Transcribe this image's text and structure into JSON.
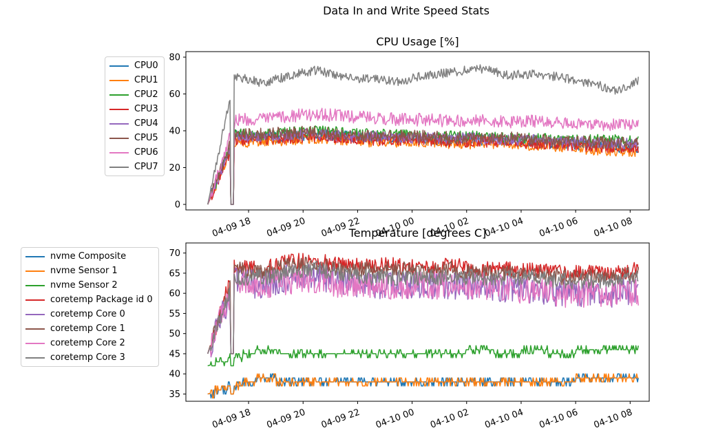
{
  "figure": {
    "suptitle": "Data In and Write Speed Stats"
  },
  "colors": [
    "#1f77b4",
    "#ff7f0e",
    "#2ca02c",
    "#d62728",
    "#9467bd",
    "#8c564b",
    "#e377c2",
    "#7f7f7f"
  ],
  "chart_data": [
    {
      "type": "line",
      "title": "CPU Usage [%]",
      "xlabel": "",
      "ylabel": "",
      "ylim": [
        -3,
        83
      ],
      "yticks": [
        0,
        20,
        40,
        60,
        80
      ],
      "xlim_hours": [
        15.7,
        32.7
      ],
      "xtick_labels": [
        "04-09 18",
        "04-09 20",
        "04-09 22",
        "04-10 00",
        "04-10 02",
        "04-10 04",
        "04-10 06",
        "04-10 08"
      ],
      "xtick_hours": [
        18,
        20,
        22,
        24,
        26,
        28,
        30,
        32
      ],
      "legend_position": "left-outside",
      "series": [
        {
          "name": "CPU0",
          "x": [
            16.5,
            17.5,
            18.5,
            19.5,
            20.5,
            21.5,
            22.5,
            23.5,
            24.5,
            25.5,
            26.5,
            27.5,
            28.5,
            29.5,
            30.5,
            31.5,
            32.3
          ],
          "values": [
            0,
            38,
            36,
            37,
            38,
            37,
            36,
            36,
            35,
            35,
            35,
            35,
            34,
            33,
            32,
            31,
            31
          ],
          "noise": 3
        },
        {
          "name": "CPU1",
          "x": [
            16.5,
            17.5,
            18.5,
            19.5,
            20.5,
            21.5,
            22.5,
            23.5,
            24.5,
            25.5,
            26.5,
            27.5,
            28.5,
            29.5,
            30.5,
            31.5,
            32.3
          ],
          "values": [
            0,
            34,
            34,
            35,
            36,
            35,
            34,
            34,
            34,
            33,
            33,
            33,
            32,
            31,
            30,
            29,
            29
          ],
          "noise": 3
        },
        {
          "name": "CPU2",
          "x": [
            16.5,
            17.5,
            18.5,
            19.5,
            20.5,
            21.5,
            22.5,
            23.5,
            24.5,
            25.5,
            26.5,
            27.5,
            28.5,
            29.5,
            30.5,
            31.5,
            32.3
          ],
          "values": [
            0,
            38,
            38,
            39,
            40,
            39,
            38,
            38,
            37,
            37,
            37,
            36,
            36,
            35,
            35,
            35,
            34
          ],
          "noise": 3
        },
        {
          "name": "CPU3",
          "x": [
            16.5,
            17.5,
            18.5,
            19.5,
            20.5,
            21.5,
            22.5,
            23.5,
            24.5,
            25.5,
            26.5,
            27.5,
            28.5,
            29.5,
            30.5,
            31.5,
            32.3
          ],
          "values": [
            0,
            35,
            35,
            36,
            37,
            36,
            35,
            35,
            35,
            34,
            34,
            34,
            33,
            32,
            31,
            31,
            30
          ],
          "noise": 3
        },
        {
          "name": "CPU4",
          "x": [
            16.5,
            17.5,
            18.5,
            19.5,
            20.5,
            21.5,
            22.5,
            23.5,
            24.5,
            25.5,
            26.5,
            27.5,
            28.5,
            29.5,
            30.5,
            31.5,
            32.3
          ],
          "values": [
            0,
            37,
            37,
            38,
            38,
            37,
            37,
            36,
            36,
            36,
            36,
            35,
            35,
            34,
            34,
            33,
            33
          ],
          "noise": 3
        },
        {
          "name": "CPU5",
          "x": [
            16.5,
            17.5,
            18.5,
            19.5,
            20.5,
            21.5,
            22.5,
            23.5,
            24.5,
            25.5,
            26.5,
            27.5,
            28.5,
            29.5,
            30.5,
            31.5,
            32.3
          ],
          "values": [
            0,
            39,
            38,
            39,
            39,
            38,
            37,
            37,
            37,
            36,
            36,
            36,
            35,
            34,
            34,
            33,
            33
          ],
          "noise": 3.5
        },
        {
          "name": "CPU6",
          "x": [
            16.5,
            17.5,
            18.5,
            19.5,
            20.5,
            21.5,
            22.5,
            23.5,
            24.5,
            25.5,
            26.5,
            27.5,
            28.5,
            29.5,
            30.5,
            31.5,
            32.3
          ],
          "values": [
            0,
            46,
            46,
            48,
            49,
            48,
            47,
            46,
            46,
            45,
            46,
            45,
            45,
            44,
            43,
            43,
            44
          ],
          "noise": 3.5
        },
        {
          "name": "CPU7",
          "x": [
            16.5,
            17.5,
            18.5,
            19.5,
            20.5,
            21.5,
            22.5,
            23.5,
            24.5,
            25.5,
            26.5,
            27.5,
            28.5,
            29.5,
            30.5,
            31.5,
            32.3
          ],
          "values": [
            0,
            70,
            66,
            70,
            73,
            69,
            68,
            67,
            70,
            72,
            74,
            70,
            71,
            69,
            66,
            62,
            67
          ],
          "noise": 2.5
        }
      ]
    },
    {
      "type": "line",
      "title": "Temperature [degrees C]",
      "xlabel": "",
      "ylabel": "",
      "ylim": [
        33.2,
        72.5
      ],
      "yticks": [
        35,
        40,
        45,
        50,
        55,
        60,
        65,
        70
      ],
      "xlim_hours": [
        15.7,
        32.7
      ],
      "xtick_labels": [
        "04-09 18",
        "04-09 20",
        "04-09 22",
        "04-10 00",
        "04-10 02",
        "04-10 04",
        "04-10 06",
        "04-10 08"
      ],
      "xtick_hours": [
        18,
        20,
        22,
        24,
        26,
        28,
        30,
        32
      ],
      "legend_position": "left-outside",
      "series": [
        {
          "name": "nvme Composite",
          "x": [
            16.5,
            17.5,
            18.5,
            19.5,
            20.5,
            21.5,
            22.5,
            23.5,
            24.5,
            25.5,
            26.5,
            27.5,
            28.5,
            29.5,
            30.5,
            31.5,
            32.3
          ],
          "values": [
            35,
            37,
            39,
            38,
            38,
            38,
            38,
            38,
            38,
            38,
            38,
            38,
            38,
            38,
            39,
            39,
            39
          ],
          "noise": 0.6
        },
        {
          "name": "nvme Sensor 1",
          "x": [
            16.5,
            17.5,
            18.5,
            19.5,
            20.5,
            21.5,
            22.5,
            23.5,
            24.5,
            25.5,
            26.5,
            27.5,
            28.5,
            29.5,
            30.5,
            31.5,
            32.3
          ],
          "values": [
            35,
            37,
            39,
            38,
            38,
            38,
            38,
            38,
            38,
            38,
            38,
            38,
            38,
            38,
            39,
            39,
            39
          ],
          "noise": 0.6
        },
        {
          "name": "nvme Sensor 2",
          "x": [
            16.5,
            17.5,
            18.5,
            19.5,
            20.5,
            21.5,
            22.5,
            23.5,
            24.5,
            25.5,
            26.5,
            27.5,
            28.5,
            29.5,
            30.5,
            31.5,
            32.3
          ],
          "values": [
            42,
            44,
            46,
            45,
            45,
            45,
            45,
            45,
            45,
            45,
            46,
            45,
            46,
            45,
            46,
            46,
            46
          ],
          "noise": 0.6
        },
        {
          "name": "coretemp Package id 0",
          "x": [
            16.5,
            17.5,
            18.5,
            19.5,
            20.5,
            21.5,
            22.5,
            23.5,
            24.5,
            25.5,
            26.5,
            27.5,
            28.5,
            29.5,
            30.5,
            31.5,
            32.3
          ],
          "values": [
            45,
            67,
            66,
            68,
            68,
            67,
            67,
            67,
            66,
            67,
            66,
            66,
            66,
            65,
            65,
            65,
            66
          ],
          "noise": 2
        },
        {
          "name": "coretemp Core 0",
          "x": [
            16.5,
            17.5,
            18.5,
            19.5,
            20.5,
            21.5,
            22.5,
            23.5,
            24.5,
            25.5,
            26.5,
            27.5,
            28.5,
            29.5,
            30.5,
            31.5,
            32.3
          ],
          "values": [
            45,
            63,
            62,
            64,
            64,
            63,
            62,
            62,
            62,
            62,
            62,
            61,
            61,
            60,
            60,
            60,
            61
          ],
          "noise": 3.5
        },
        {
          "name": "coretemp Core 1",
          "x": [
            16.5,
            17.5,
            18.5,
            19.5,
            20.5,
            21.5,
            22.5,
            23.5,
            24.5,
            25.5,
            26.5,
            27.5,
            28.5,
            29.5,
            30.5,
            31.5,
            32.3
          ],
          "values": [
            45,
            66,
            65,
            67,
            67,
            66,
            66,
            66,
            65,
            66,
            65,
            65,
            65,
            64,
            64,
            64,
            65
          ],
          "noise": 2
        },
        {
          "name": "coretemp Core 2",
          "x": [
            16.5,
            17.5,
            18.5,
            19.5,
            20.5,
            21.5,
            22.5,
            23.5,
            24.5,
            25.5,
            26.5,
            27.5,
            28.5,
            29.5,
            30.5,
            31.5,
            32.3
          ],
          "values": [
            45,
            63,
            62,
            63,
            63,
            62,
            62,
            62,
            62,
            62,
            62,
            61,
            61,
            60,
            60,
            60,
            60
          ],
          "noise": 3.5
        },
        {
          "name": "coretemp Core 3",
          "x": [
            16.5,
            17.5,
            18.5,
            19.5,
            20.5,
            21.5,
            22.5,
            23.5,
            24.5,
            25.5,
            26.5,
            27.5,
            28.5,
            29.5,
            30.5,
            31.5,
            32.3
          ],
          "values": [
            45,
            64,
            64,
            65,
            66,
            65,
            64,
            64,
            64,
            64,
            64,
            64,
            64,
            63,
            63,
            63,
            64
          ],
          "noise": 2
        }
      ]
    }
  ]
}
